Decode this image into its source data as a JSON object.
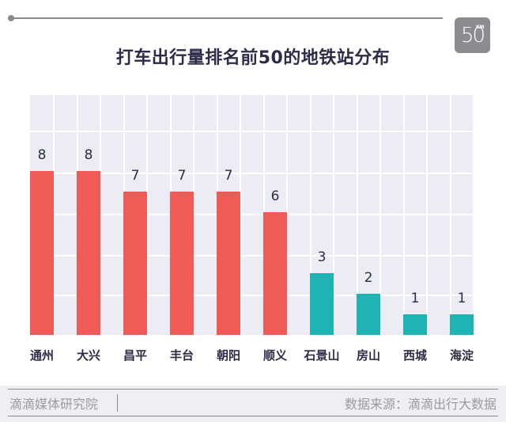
{
  "header": {
    "title": "打车出行量排名前50的地铁站分布",
    "logo_number": "50",
    "logo_unit": "KM"
  },
  "colors": {
    "high": "#f05a57",
    "low": "#1fb3b3",
    "plot_bg": "#ebecf4",
    "text": "#2c2c48"
  },
  "chart_data": {
    "type": "bar",
    "title": "打车出行量排名前50的地铁站分布",
    "xlabel": "",
    "ylabel": "",
    "categories": [
      "通州",
      "大兴",
      "昌平",
      "丰台",
      "朝阳",
      "顺义",
      "石景山",
      "房山",
      "西城",
      "海淀"
    ],
    "values": [
      8,
      8,
      7,
      7,
      7,
      6,
      3,
      2,
      1,
      1
    ],
    "bar_colors": [
      "#f05a57",
      "#f05a57",
      "#f05a57",
      "#f05a57",
      "#f05a57",
      "#f05a57",
      "#1fb3b3",
      "#1fb3b3",
      "#1fb3b3",
      "#1fb3b3"
    ],
    "ylim": [
      0,
      11.5
    ],
    "grid": true,
    "data_labels": true,
    "legend": null
  },
  "footer": {
    "left": "滴滴媒体研究院",
    "right": "数据来源：滴滴出行大数据"
  }
}
